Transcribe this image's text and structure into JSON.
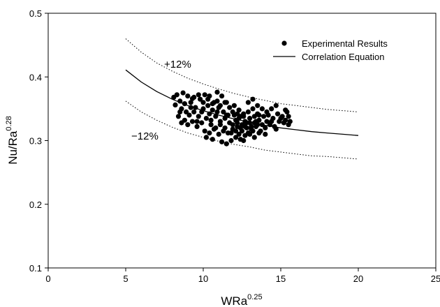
{
  "chart_data": {
    "type": "scatter",
    "xlabel": {
      "base": "WRa",
      "sup": "0.25"
    },
    "ylabel": {
      "base": "Nu/Ra",
      "sup": "0.28"
    },
    "xlim": [
      0,
      25
    ],
    "ylim": [
      0.1,
      0.5
    ],
    "xticks": [
      "0",
      "5",
      "10",
      "15",
      "20",
      "25"
    ],
    "yticks": [
      "0.1",
      "0.2",
      "0.3",
      "0.4",
      "0.5"
    ],
    "grid": false,
    "legend": {
      "position": "top-right",
      "entries": [
        "Experimental Results",
        "Correlation Equation"
      ]
    },
    "band_labels": {
      "upper": "+12%",
      "lower": "−12%"
    },
    "correlation_curve": [
      {
        "x": 5,
        "y": 0.411
      },
      {
        "x": 6,
        "y": 0.392
      },
      {
        "x": 7,
        "y": 0.377
      },
      {
        "x": 8,
        "y": 0.365
      },
      {
        "x": 9,
        "y": 0.355
      },
      {
        "x": 10,
        "y": 0.347
      },
      {
        "x": 11,
        "y": 0.34
      },
      {
        "x": 12,
        "y": 0.334
      },
      {
        "x": 13,
        "y": 0.329
      },
      {
        "x": 14,
        "y": 0.324
      },
      {
        "x": 15,
        "y": 0.32
      },
      {
        "x": 16,
        "y": 0.317
      },
      {
        "x": 17,
        "y": 0.314
      },
      {
        "x": 18,
        "y": 0.312
      },
      {
        "x": 19,
        "y": 0.31
      },
      {
        "x": 20,
        "y": 0.308
      }
    ],
    "upper_bound": [
      {
        "x": 5,
        "y": 0.46
      },
      {
        "x": 6,
        "y": 0.439
      },
      {
        "x": 7,
        "y": 0.422
      },
      {
        "x": 8,
        "y": 0.409
      },
      {
        "x": 9,
        "y": 0.398
      },
      {
        "x": 10,
        "y": 0.389
      },
      {
        "x": 11,
        "y": 0.381
      },
      {
        "x": 12,
        "y": 0.374
      },
      {
        "x": 13,
        "y": 0.368
      },
      {
        "x": 14,
        "y": 0.363
      },
      {
        "x": 15,
        "y": 0.358
      },
      {
        "x": 16,
        "y": 0.355
      },
      {
        "x": 17,
        "y": 0.352
      },
      {
        "x": 18,
        "y": 0.349
      },
      {
        "x": 19,
        "y": 0.347
      },
      {
        "x": 20,
        "y": 0.345
      }
    ],
    "lower_bound": [
      {
        "x": 5,
        "y": 0.362
      },
      {
        "x": 6,
        "y": 0.345
      },
      {
        "x": 7,
        "y": 0.332
      },
      {
        "x": 8,
        "y": 0.321
      },
      {
        "x": 9,
        "y": 0.312
      },
      {
        "x": 10,
        "y": 0.305
      },
      {
        "x": 11,
        "y": 0.299
      },
      {
        "x": 12,
        "y": 0.294
      },
      {
        "x": 13,
        "y": 0.29
      },
      {
        "x": 14,
        "y": 0.285
      },
      {
        "x": 15,
        "y": 0.282
      },
      {
        "x": 16,
        "y": 0.279
      },
      {
        "x": 17,
        "y": 0.276
      },
      {
        "x": 18,
        "y": 0.275
      },
      {
        "x": 19,
        "y": 0.273
      },
      {
        "x": 20,
        "y": 0.271
      }
    ],
    "points": [
      {
        "x": 8.1,
        "y": 0.368
      },
      {
        "x": 8.3,
        "y": 0.372
      },
      {
        "x": 8.5,
        "y": 0.362
      },
      {
        "x": 8.7,
        "y": 0.375
      },
      {
        "x": 9.0,
        "y": 0.37
      },
      {
        "x": 9.3,
        "y": 0.366
      },
      {
        "x": 8.2,
        "y": 0.356
      },
      {
        "x": 8.6,
        "y": 0.35
      },
      {
        "x": 8.9,
        "y": 0.345
      },
      {
        "x": 9.2,
        "y": 0.36
      },
      {
        "x": 9.5,
        "y": 0.352
      },
      {
        "x": 9.8,
        "y": 0.365
      },
      {
        "x": 10.1,
        "y": 0.372
      },
      {
        "x": 10.4,
        "y": 0.37
      },
      {
        "x": 10.7,
        "y": 0.36
      },
      {
        "x": 10.9,
        "y": 0.376
      },
      {
        "x": 11.2,
        "y": 0.37
      },
      {
        "x": 11.5,
        "y": 0.36
      },
      {
        "x": 8.4,
        "y": 0.338
      },
      {
        "x": 8.8,
        "y": 0.332
      },
      {
        "x": 9.1,
        "y": 0.34
      },
      {
        "x": 9.4,
        "y": 0.345
      },
      {
        "x": 9.7,
        "y": 0.338
      },
      {
        "x": 10.0,
        "y": 0.35
      },
      {
        "x": 10.3,
        "y": 0.355
      },
      {
        "x": 10.6,
        "y": 0.348
      },
      {
        "x": 11.0,
        "y": 0.352
      },
      {
        "x": 11.3,
        "y": 0.345
      },
      {
        "x": 11.6,
        "y": 0.34
      },
      {
        "x": 12.0,
        "y": 0.355
      },
      {
        "x": 12.3,
        "y": 0.348
      },
      {
        "x": 12.6,
        "y": 0.342
      },
      {
        "x": 12.9,
        "y": 0.36
      },
      {
        "x": 13.2,
        "y": 0.365
      },
      {
        "x": 13.5,
        "y": 0.355
      },
      {
        "x": 13.8,
        "y": 0.35
      },
      {
        "x": 8.6,
        "y": 0.328
      },
      {
        "x": 9.0,
        "y": 0.325
      },
      {
        "x": 9.3,
        "y": 0.33
      },
      {
        "x": 9.6,
        "y": 0.322
      },
      {
        "x": 9.9,
        "y": 0.328
      },
      {
        "x": 10.2,
        "y": 0.335
      },
      {
        "x": 10.5,
        "y": 0.332
      },
      {
        "x": 10.8,
        "y": 0.338
      },
      {
        "x": 11.1,
        "y": 0.33
      },
      {
        "x": 11.4,
        "y": 0.335
      },
      {
        "x": 11.7,
        "y": 0.328
      },
      {
        "x": 12.1,
        "y": 0.332
      },
      {
        "x": 12.4,
        "y": 0.338
      },
      {
        "x": 12.7,
        "y": 0.33
      },
      {
        "x": 13.0,
        "y": 0.335
      },
      {
        "x": 13.3,
        "y": 0.328
      },
      {
        "x": 13.6,
        "y": 0.332
      },
      {
        "x": 13.9,
        "y": 0.338
      },
      {
        "x": 14.2,
        "y": 0.34
      },
      {
        "x": 14.5,
        "y": 0.335
      },
      {
        "x": 14.8,
        "y": 0.342
      },
      {
        "x": 15.1,
        "y": 0.338
      },
      {
        "x": 15.4,
        "y": 0.345
      },
      {
        "x": 10.1,
        "y": 0.315
      },
      {
        "x": 10.4,
        "y": 0.312
      },
      {
        "x": 10.7,
        "y": 0.318
      },
      {
        "x": 11.0,
        "y": 0.31
      },
      {
        "x": 11.3,
        "y": 0.315
      },
      {
        "x": 11.6,
        "y": 0.312
      },
      {
        "x": 11.9,
        "y": 0.318
      },
      {
        "x": 12.2,
        "y": 0.322
      },
      {
        "x": 12.5,
        "y": 0.315
      },
      {
        "x": 12.8,
        "y": 0.32
      },
      {
        "x": 13.1,
        "y": 0.318
      },
      {
        "x": 13.4,
        "y": 0.322
      },
      {
        "x": 13.7,
        "y": 0.315
      },
      {
        "x": 14.0,
        "y": 0.32
      },
      {
        "x": 14.3,
        "y": 0.325
      },
      {
        "x": 14.6,
        "y": 0.322
      },
      {
        "x": 14.9,
        "y": 0.33
      },
      {
        "x": 15.2,
        "y": 0.328
      },
      {
        "x": 15.5,
        "y": 0.325
      },
      {
        "x": 10.2,
        "y": 0.305
      },
      {
        "x": 10.6,
        "y": 0.302
      },
      {
        "x": 11.2,
        "y": 0.298
      },
      {
        "x": 11.5,
        "y": 0.295
      },
      {
        "x": 11.8,
        "y": 0.3
      },
      {
        "x": 12.1,
        "y": 0.305
      },
      {
        "x": 12.4,
        "y": 0.302
      },
      {
        "x": 12.7,
        "y": 0.308
      },
      {
        "x": 13.0,
        "y": 0.31
      },
      {
        "x": 13.3,
        "y": 0.305
      },
      {
        "x": 13.6,
        "y": 0.312
      },
      {
        "x": 14.0,
        "y": 0.31
      },
      {
        "x": 11.9,
        "y": 0.325
      },
      {
        "x": 12.2,
        "y": 0.328
      },
      {
        "x": 12.5,
        "y": 0.325
      },
      {
        "x": 12.8,
        "y": 0.328
      },
      {
        "x": 13.1,
        "y": 0.322
      },
      {
        "x": 13.4,
        "y": 0.33
      },
      {
        "x": 12.0,
        "y": 0.34
      },
      {
        "x": 12.3,
        "y": 0.335
      },
      {
        "x": 12.6,
        "y": 0.338
      },
      {
        "x": 12.9,
        "y": 0.345
      },
      {
        "x": 13.2,
        "y": 0.35
      },
      {
        "x": 13.5,
        "y": 0.342
      },
      {
        "x": 14.1,
        "y": 0.345
      },
      {
        "x": 14.4,
        "y": 0.35
      },
      {
        "x": 14.7,
        "y": 0.355
      },
      {
        "x": 15.0,
        "y": 0.335
      },
      {
        "x": 15.3,
        "y": 0.332
      },
      {
        "x": 15.6,
        "y": 0.33
      },
      {
        "x": 15.5,
        "y": 0.338
      },
      {
        "x": 15.3,
        "y": 0.348
      },
      {
        "x": 10.0,
        "y": 0.36
      },
      {
        "x": 10.3,
        "y": 0.365
      },
      {
        "x": 10.6,
        "y": 0.358
      },
      {
        "x": 10.9,
        "y": 0.362
      },
      {
        "x": 11.1,
        "y": 0.355
      },
      {
        "x": 11.4,
        "y": 0.36
      },
      {
        "x": 11.7,
        "y": 0.352
      },
      {
        "x": 9.7,
        "y": 0.372
      },
      {
        "x": 9.4,
        "y": 0.368
      },
      {
        "x": 8.8,
        "y": 0.358
      },
      {
        "x": 9.6,
        "y": 0.33
      },
      {
        "x": 10.5,
        "y": 0.325
      },
      {
        "x": 10.8,
        "y": 0.32
      },
      {
        "x": 11.1,
        "y": 0.325
      },
      {
        "x": 11.4,
        "y": 0.32
      },
      {
        "x": 11.8,
        "y": 0.312
      },
      {
        "x": 12.3,
        "y": 0.31
      },
      {
        "x": 12.6,
        "y": 0.3
      },
      {
        "x": 12.9,
        "y": 0.312
      },
      {
        "x": 13.2,
        "y": 0.315
      },
      {
        "x": 13.5,
        "y": 0.325
      },
      {
        "x": 13.8,
        "y": 0.325
      },
      {
        "x": 14.1,
        "y": 0.33
      },
      {
        "x": 14.4,
        "y": 0.33
      },
      {
        "x": 14.7,
        "y": 0.318
      },
      {
        "x": 12.1,
        "y": 0.315
      },
      {
        "x": 12.4,
        "y": 0.32
      },
      {
        "x": 12.7,
        "y": 0.322
      },
      {
        "x": 13.0,
        "y": 0.328
      },
      {
        "x": 13.3,
        "y": 0.338
      },
      {
        "x": 13.6,
        "y": 0.34
      },
      {
        "x": 11.5,
        "y": 0.34
      },
      {
        "x": 11.9,
        "y": 0.345
      },
      {
        "x": 12.2,
        "y": 0.342
      },
      {
        "x": 10.9,
        "y": 0.345
      },
      {
        "x": 10.4,
        "y": 0.342
      },
      {
        "x": 9.9,
        "y": 0.345
      },
      {
        "x": 9.2,
        "y": 0.352
      },
      {
        "x": 8.5,
        "y": 0.345
      }
    ]
  }
}
